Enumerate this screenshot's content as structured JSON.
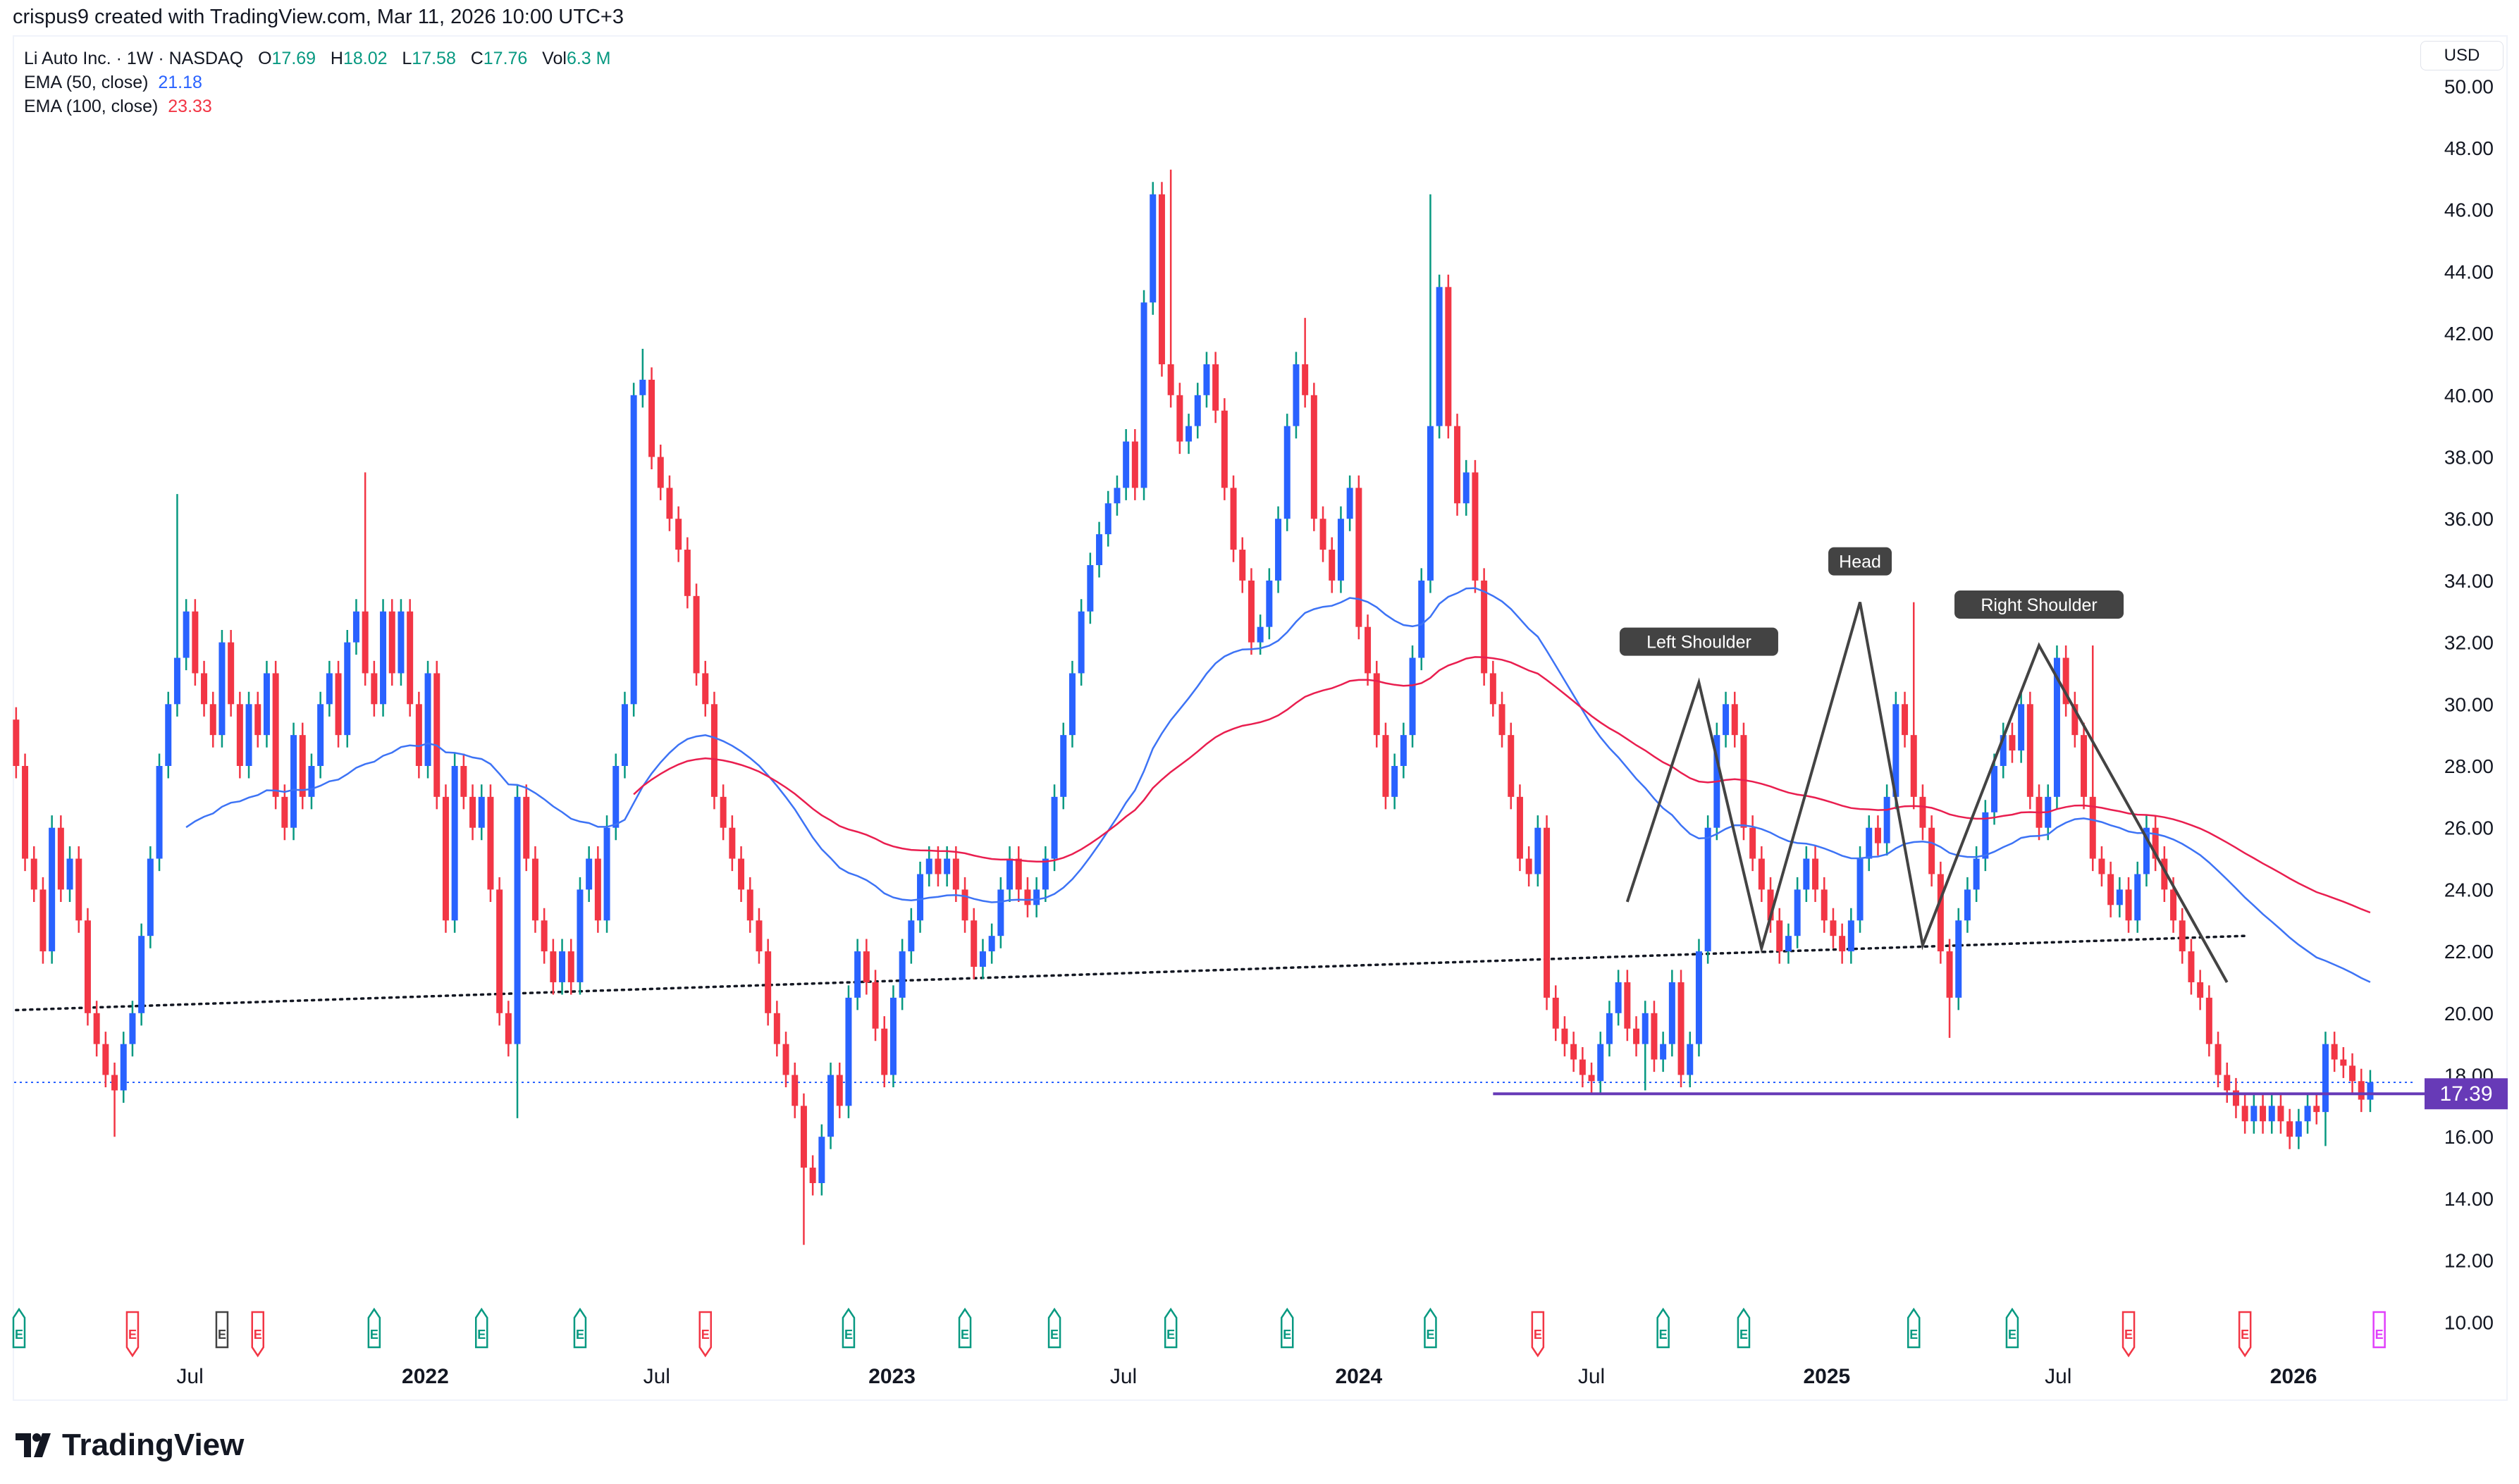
{
  "header": {
    "credit": "crispus9 created with TradingView.com, Mar 11, 2026 10:00 UTC+3",
    "symbol_line": "Li Auto Inc. · 1W · NASDAQ",
    "ohlc": {
      "o_label": "O",
      "o": "17.69",
      "h_label": "H",
      "h": "18.02",
      "l_label": "L",
      "l": "17.58",
      "c_label": "C",
      "c": "17.76",
      "vol_label": "Vol",
      "vol": "6.3 M"
    },
    "ema50": {
      "label": "EMA (50, close)",
      "value": "21.18"
    },
    "ema100": {
      "label": "EMA (100, close)",
      "value": "23.33"
    },
    "currency": "USD"
  },
  "brand": {
    "name": "TradingView"
  },
  "colors": {
    "up_body": "#2962ff",
    "up_wick": "#089981",
    "down": "#f23645",
    "ema50": "#3d73f5",
    "ema100": "#e91e4f",
    "neckline": "#673ab7",
    "pattern": "#434343",
    "trend": "#131722",
    "last_price": "#2962ff"
  },
  "chart_data": {
    "type": "candlestick",
    "interval": "1W",
    "start_week": "2021-02-15",
    "ylim": [
      10,
      50
    ],
    "y_ticks": [
      "10.00",
      "12.00",
      "14.00",
      "16.00",
      "18.00",
      "20.00",
      "22.00",
      "24.00",
      "26.00",
      "28.00",
      "30.00",
      "32.00",
      "34.00",
      "36.00",
      "38.00",
      "40.00",
      "42.00",
      "44.00",
      "46.00",
      "48.00",
      "50.00"
    ],
    "x_ticks": [
      {
        "label": "Jul",
        "date": "2021-07-01"
      },
      {
        "label": "2022",
        "date": "2022-01-01"
      },
      {
        "label": "Jul",
        "date": "2022-07-01"
      },
      {
        "label": "2023",
        "date": "2023-01-01"
      },
      {
        "label": "Jul",
        "date": "2023-07-01"
      },
      {
        "label": "2024",
        "date": "2024-01-01"
      },
      {
        "label": "Jul",
        "date": "2024-07-01"
      },
      {
        "label": "2025",
        "date": "2025-01-01"
      },
      {
        "label": "Jul",
        "date": "2025-07-01"
      },
      {
        "label": "2026",
        "date": "2026-01-01"
      }
    ],
    "close": [
      28,
      25,
      24,
      22,
      26,
      24,
      25,
      23,
      20,
      19,
      18,
      17.5,
      19,
      20,
      22.5,
      25,
      28,
      30,
      31.5,
      33,
      31,
      30,
      29,
      32,
      30,
      28,
      30,
      29,
      31,
      27,
      26,
      29,
      27,
      28,
      30,
      31,
      29,
      32,
      33,
      31,
      30,
      33,
      31,
      33,
      30,
      28,
      31,
      27,
      23,
      28,
      27,
      26,
      27,
      24,
      20,
      19,
      27,
      25,
      23,
      22,
      21,
      22,
      21,
      24,
      25,
      23,
      26,
      28,
      30,
      40,
      40.5,
      38,
      37,
      36,
      35,
      33.5,
      31,
      30,
      27,
      26,
      25,
      24,
      23,
      22,
      20,
      19,
      18,
      17,
      15,
      14.5,
      16,
      18,
      17,
      20.5,
      22,
      21,
      19.5,
      18,
      20.5,
      22,
      23,
      24.5,
      25,
      24.5,
      25,
      24,
      23,
      21.5,
      22,
      22.5,
      24,
      25,
      24,
      23.5,
      24,
      25,
      27,
      29,
      31,
      33,
      34.5,
      35.5,
      36.5,
      37,
      38.5,
      37,
      43,
      46.5,
      41,
      40,
      38.5,
      39,
      40,
      41,
      39.5,
      37,
      35,
      34,
      32,
      32.5,
      34,
      36,
      39,
      41,
      40,
      36,
      35,
      34,
      36,
      37,
      32.5,
      31,
      29,
      27,
      28,
      29,
      31.5,
      34,
      39,
      43.5,
      39,
      36.5,
      37.5,
      34,
      31,
      30,
      29,
      27,
      25,
      24.5,
      26,
      20.5,
      19.5,
      19,
      18.5,
      18,
      17.8,
      19,
      20,
      21,
      19.5,
      19,
      20,
      18.5,
      19,
      21,
      18,
      19,
      22,
      26,
      29,
      30,
      29,
      26,
      25,
      24,
      23,
      22,
      22.5,
      24,
      25,
      24,
      23,
      22.5,
      22,
      23,
      25,
      26,
      25.5,
      27,
      30,
      29,
      27,
      26,
      24.5,
      22,
      20.5,
      23,
      24,
      25,
      26.5,
      28,
      29,
      28.5,
      30,
      27,
      26,
      27,
      31.5,
      30,
      29,
      27,
      25,
      24.5,
      23.5,
      24,
      23,
      24.5,
      26,
      25,
      24,
      23,
      22,
      21,
      20.5,
      19,
      18,
      17.5,
      17,
      16.5,
      17,
      16.5,
      17,
      16.5,
      16,
      16.5,
      17,
      16.8,
      19,
      18.5,
      18.3,
      17.8,
      17.2,
      17.76
    ],
    "extreme_highs": [
      {
        "date": "2021-06-21",
        "price": 36.8
      },
      {
        "date": "2021-11-15",
        "price": 37.5
      },
      {
        "date": "2022-06-20",
        "price": 41.5
      },
      {
        "date": "2023-08-07",
        "price": 47.3
      },
      {
        "date": "2023-11-20",
        "price": 42.5
      },
      {
        "date": "2024-02-26",
        "price": 46.5
      },
      {
        "date": "2025-03-10",
        "price": 33.3
      },
      {
        "date": "2025-07-28",
        "price": 31.9
      }
    ],
    "extreme_lows": [
      {
        "date": "2021-05-03",
        "price": 16
      },
      {
        "date": "2022-03-14",
        "price": 16.6
      },
      {
        "date": "2022-10-24",
        "price": 12.5
      },
      {
        "date": "2024-08-12",
        "price": 17.5
      },
      {
        "date": "2025-04-07",
        "price": 19.2
      },
      {
        "date": "2026-01-26",
        "price": 15.7
      }
    ],
    "ema_periods": [
      50,
      100
    ],
    "last_price": 17.76,
    "drawings": {
      "trendline": {
        "style": "dotted",
        "from": {
          "date": "2021-02-15",
          "price": 20.1
        },
        "to": {
          "date": "2025-11-24",
          "price": 22.5
        }
      },
      "neckline": {
        "price": 17.39,
        "label": "17.39",
        "from_date": "2024-04-15"
      },
      "head_and_shoulders": [
        {
          "date": "2024-07-29",
          "price": 23.6
        },
        {
          "date": "2024-09-23",
          "price": 30.7
        },
        {
          "date": "2024-11-11",
          "price": 22.1
        },
        {
          "date": "2025-01-27",
          "price": 33.3
        },
        {
          "date": "2025-03-17",
          "price": 22.2
        },
        {
          "date": "2025-06-16",
          "price": 31.9
        },
        {
          "date": "2025-11-10",
          "price": 21.0
        }
      ],
      "labels": [
        {
          "text": "Left Shoulder",
          "date": "2024-09-23",
          "price": 30.7
        },
        {
          "text": "Head",
          "date": "2025-01-27",
          "price": 33.3
        },
        {
          "text": "Right Shoulder",
          "date": "2025-06-16",
          "price": 31.9
        }
      ]
    },
    "earnings": [
      {
        "date": "2021-02-15",
        "kind": "beat",
        "letter": "E"
      },
      {
        "date": "2021-05-17",
        "kind": "miss",
        "letter": "E"
      },
      {
        "date": "2021-07-26",
        "kind": "neutral",
        "letter": "E"
      },
      {
        "date": "2021-08-23",
        "kind": "miss",
        "letter": "E"
      },
      {
        "date": "2021-11-22",
        "kind": "beat",
        "letter": "E"
      },
      {
        "date": "2022-02-14",
        "kind": "beat",
        "letter": "E"
      },
      {
        "date": "2022-05-02",
        "kind": "beat",
        "letter": "E"
      },
      {
        "date": "2022-08-08",
        "kind": "miss",
        "letter": "E"
      },
      {
        "date": "2022-11-28",
        "kind": "beat",
        "letter": "E"
      },
      {
        "date": "2023-02-27",
        "kind": "beat",
        "letter": "E"
      },
      {
        "date": "2023-05-08",
        "kind": "beat",
        "letter": "E"
      },
      {
        "date": "2023-08-07",
        "kind": "beat",
        "letter": "E"
      },
      {
        "date": "2023-11-06",
        "kind": "beat",
        "letter": "E"
      },
      {
        "date": "2024-02-26",
        "kind": "beat",
        "letter": "E"
      },
      {
        "date": "2024-05-20",
        "kind": "miss",
        "letter": "E"
      },
      {
        "date": "2024-08-26",
        "kind": "beat",
        "letter": "E"
      },
      {
        "date": "2024-10-28",
        "kind": "beat",
        "letter": "E"
      },
      {
        "date": "2025-03-10",
        "kind": "beat",
        "letter": "E"
      },
      {
        "date": "2025-05-26",
        "kind": "beat",
        "letter": "E"
      },
      {
        "date": "2025-08-25",
        "kind": "miss",
        "letter": "E"
      },
      {
        "date": "2025-11-24",
        "kind": "miss",
        "letter": "E"
      },
      {
        "date": "2026-03-09",
        "kind": "upcoming",
        "letter": "E"
      }
    ]
  }
}
